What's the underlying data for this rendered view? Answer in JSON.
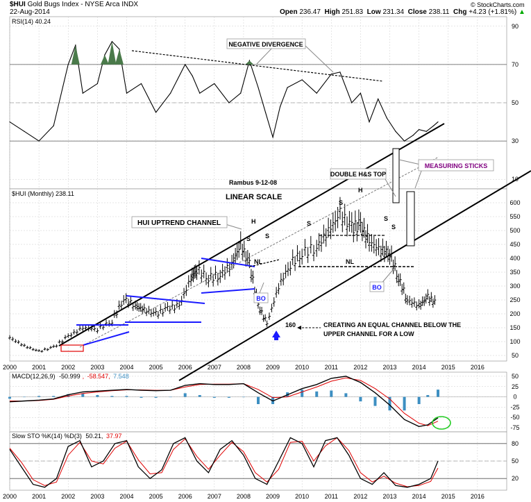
{
  "header": {
    "symbol": "$HUI",
    "name": "Gold Bugs Index - NYSE Arca  INDX",
    "date": "22-Aug-2014",
    "open_label": "Open",
    "open": "236.47",
    "high_label": "High",
    "high": "251.83",
    "low_label": "Low",
    "low": "231.34",
    "close_label": "Close",
    "close": "238.11",
    "chg_label": "Chg",
    "chg": "+4.23 (+1.81%)",
    "chg_arrow": "▲",
    "credit": "© StockCharts.com"
  },
  "colors": {
    "price": "#000000",
    "pattern_blue": "#1a1aff",
    "signal_red": "#e00000",
    "histogram": "#3d8fc2",
    "rsi_fill": "#4a7a4a",
    "label_purple": "#800080",
    "circle_green": "#22cc22",
    "grid": "#cccccc"
  },
  "chart_data": [
    {
      "type": "line",
      "panel": "RSI",
      "label": "RSI(14) 40.24",
      "y_ticks": [
        90,
        70,
        50,
        30,
        10
      ],
      "ylim": [
        5,
        95
      ],
      "overbought": 70,
      "oversold": 30,
      "x": [
        2000.0,
        2000.5,
        2001.0,
        2001.5,
        2002.0,
        2002.25,
        2002.5,
        2003.0,
        2003.25,
        2003.5,
        2003.75,
        2004.0,
        2004.5,
        2005.0,
        2005.5,
        2006.0,
        2006.25,
        2006.5,
        2007.0,
        2007.5,
        2007.9,
        2008.2,
        2008.5,
        2008.75,
        2009.0,
        2009.25,
        2009.5,
        2010.0,
        2010.5,
        2011.0,
        2011.3,
        2011.7,
        2012.0,
        2012.3,
        2012.6,
        2012.9,
        2013.2,
        2013.5,
        2013.8,
        2014.0,
        2014.25,
        2014.5,
        2014.65
      ],
      "values": [
        40,
        35,
        30,
        38,
        70,
        80,
        55,
        60,
        75,
        82,
        78,
        55,
        60,
        45,
        55,
        70,
        64,
        55,
        60,
        50,
        55,
        72,
        58,
        45,
        32,
        48,
        58,
        62,
        55,
        65,
        66,
        50,
        55,
        40,
        52,
        42,
        35,
        30,
        33,
        36,
        35,
        38,
        40
      ],
      "annotations": [
        "NEGATIVE DIVERGENCE"
      ]
    },
    {
      "type": "candlestick",
      "panel": "Price",
      "label": "$HUI (Monthly) 238.11",
      "scale": "LINEAR SCALE",
      "y_ticks": [
        600,
        550,
        500,
        450,
        400,
        350,
        300,
        250,
        200,
        150,
        100,
        50
      ],
      "ylim": [
        30,
        650
      ],
      "x_ticks": [
        "2000",
        "2001",
        "2002",
        "2003",
        "2004",
        "2005",
        "2006",
        "2007",
        "2008",
        "2009",
        "2010",
        "2011",
        "2012",
        "2013",
        "2014",
        "2015",
        "2016"
      ],
      "x": [
        2000.0,
        2000.5,
        2001.0,
        2001.5,
        2002.0,
        2002.5,
        2003.0,
        2003.5,
        2003.9,
        2004.3,
        2004.6,
        2005.0,
        2005.4,
        2005.8,
        2006.2,
        2006.4,
        2006.8,
        2007.2,
        2007.6,
        2007.9,
        2008.2,
        2008.5,
        2008.8,
        2009.2,
        2009.6,
        2010.0,
        2010.5,
        2010.9,
        2011.3,
        2011.7,
        2012.0,
        2012.3,
        2012.7,
        2013.0,
        2013.3,
        2013.6,
        2014.0,
        2014.3,
        2014.6
      ],
      "close": [
        115,
        85,
        65,
        80,
        120,
        150,
        145,
        175,
        255,
        230,
        215,
        200,
        220,
        230,
        330,
        360,
        330,
        340,
        380,
        450,
        380,
        230,
        165,
        300,
        380,
        420,
        440,
        500,
        560,
        510,
        520,
        460,
        430,
        420,
        330,
        250,
        230,
        260,
        238
      ],
      "annotations": [
        "Rambus 9-12-08",
        "HUI UPTREND CHANNEL",
        "DOUBLE H&S TOP",
        "MEASURING STICKS",
        "BO",
        "BO",
        "NL",
        "NL",
        "H",
        "H",
        "S",
        "S",
        "S",
        "S",
        "S",
        "S",
        "160",
        "CREATING AN EQUAL CHANNEL BELOW THE",
        "UPPER CHANNEL FOR A LOW"
      ]
    },
    {
      "type": "line",
      "panel": "MACD",
      "label_prefix": "MACD(12,26,9)",
      "macd_value": "-50.999",
      "signal_value": "-58.547",
      "hist_value": "7.548",
      "y_ticks": [
        50,
        25,
        0,
        -25,
        -50,
        -75
      ],
      "ylim": [
        -85,
        60
      ],
      "x": [
        2000.0,
        2000.5,
        2001.0,
        2001.5,
        2002.0,
        2002.5,
        2003.0,
        2003.5,
        2004.0,
        2004.5,
        2005.0,
        2005.5,
        2006.0,
        2006.5,
        2007.0,
        2007.5,
        2008.0,
        2008.5,
        2009.0,
        2009.5,
        2010.0,
        2010.5,
        2011.0,
        2011.5,
        2012.0,
        2012.5,
        2013.0,
        2013.5,
        2014.0,
        2014.3,
        2014.65
      ],
      "macd": [
        -12,
        -10,
        -8,
        -5,
        5,
        12,
        14,
        16,
        18,
        16,
        15,
        16,
        28,
        32,
        30,
        30,
        32,
        10,
        -10,
        5,
        20,
        30,
        45,
        50,
        35,
        10,
        -20,
        -55,
        -72,
        -68,
        -51
      ],
      "signal": [
        -10,
        -10,
        -9,
        -6,
        2,
        8,
        12,
        15,
        17,
        17,
        16,
        16,
        24,
        30,
        31,
        31,
        32,
        18,
        -2,
        0,
        12,
        24,
        38,
        46,
        40,
        20,
        -5,
        -40,
        -64,
        -70,
        -59
      ]
    },
    {
      "type": "line",
      "panel": "Slow STO",
      "label_prefix": "Slow STO %K(14) %D(3)",
      "k_value": "50.21",
      "d_value": "37.97",
      "y_ticks": [
        80,
        50,
        20
      ],
      "ylim": [
        0,
        100
      ],
      "x": [
        2000.0,
        2000.4,
        2000.8,
        2001.2,
        2001.6,
        2002.0,
        2002.4,
        2002.8,
        2003.2,
        2003.6,
        2004.0,
        2004.4,
        2004.8,
        2005.2,
        2005.6,
        2006.0,
        2006.4,
        2006.8,
        2007.2,
        2007.6,
        2008.0,
        2008.4,
        2008.8,
        2009.2,
        2009.6,
        2010.0,
        2010.4,
        2010.8,
        2011.2,
        2011.6,
        2012.0,
        2012.4,
        2012.8,
        2013.2,
        2013.6,
        2014.0,
        2014.4,
        2014.65
      ],
      "k": [
        70,
        40,
        10,
        5,
        20,
        75,
        85,
        40,
        50,
        80,
        85,
        40,
        20,
        35,
        80,
        90,
        50,
        30,
        70,
        85,
        60,
        20,
        10,
        50,
        90,
        80,
        40,
        85,
        90,
        60,
        20,
        10,
        30,
        8,
        5,
        10,
        20,
        50
      ],
      "d": [
        72,
        48,
        18,
        8,
        14,
        60,
        82,
        50,
        45,
        72,
        84,
        52,
        28,
        30,
        70,
        88,
        58,
        36,
        60,
        82,
        66,
        30,
        14,
        36,
        82,
        84,
        50,
        76,
        90,
        68,
        30,
        14,
        24,
        12,
        6,
        8,
        15,
        38
      ]
    }
  ]
}
